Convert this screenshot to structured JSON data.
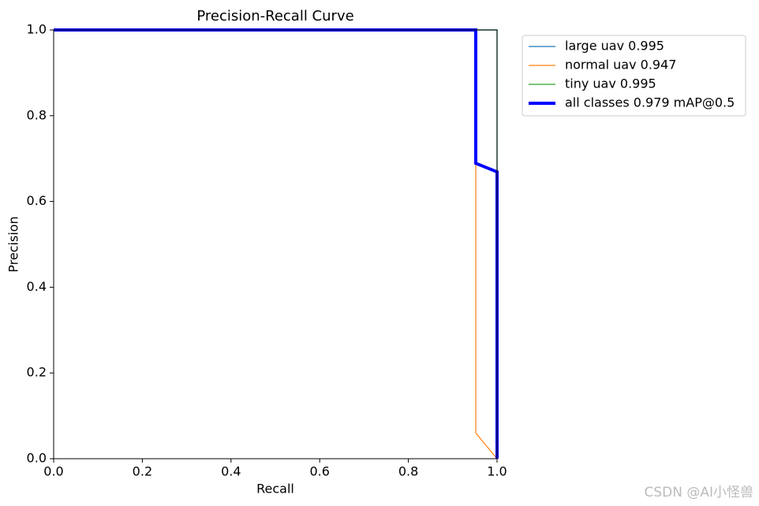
{
  "chart_data": {
    "type": "line",
    "title": "Precision-Recall Curve",
    "x_label": "Recall",
    "y_label": "Precision",
    "xlim": [
      0,
      1
    ],
    "ylim": [
      0,
      1
    ],
    "xticks": [
      {
        "value": 0,
        "label": "0.0"
      },
      0.2,
      0.4,
      0.6,
      0.8,
      {
        "value": 1,
        "label": "1.0"
      }
    ],
    "yticks": [
      {
        "value": 0,
        "label": "0.0"
      },
      0.2,
      0.4,
      0.6,
      0.8,
      {
        "value": 1,
        "label": "1.0"
      }
    ],
    "legend": "outside-upper-right",
    "series": [
      {
        "name": "large uav 0.995",
        "color": "#1f77b4",
        "width": 1.2,
        "x": [
          0,
          1,
          1
        ],
        "values": [
          1,
          1,
          0
        ]
      },
      {
        "name": "normal uav 0.947",
        "color": "#ff7f0e",
        "width": 1.2,
        "x": [
          0,
          0.952,
          0.952,
          1
        ],
        "values": [
          1,
          1,
          0.06,
          0
        ]
      },
      {
        "name": "tiny uav 0.995",
        "color": "#2ca02c",
        "width": 1.2,
        "x": [
          0,
          1,
          1
        ],
        "values": [
          1,
          1,
          0
        ]
      },
      {
        "name": "all classes 0.979 mAP@0.5",
        "color": "#0000ff",
        "width": 4,
        "x": [
          0,
          0.952,
          0.952,
          1,
          1
        ],
        "values": [
          1,
          1,
          0.689,
          0.669,
          0
        ]
      }
    ],
    "watermark": "CSDN @AI小怪兽"
  }
}
